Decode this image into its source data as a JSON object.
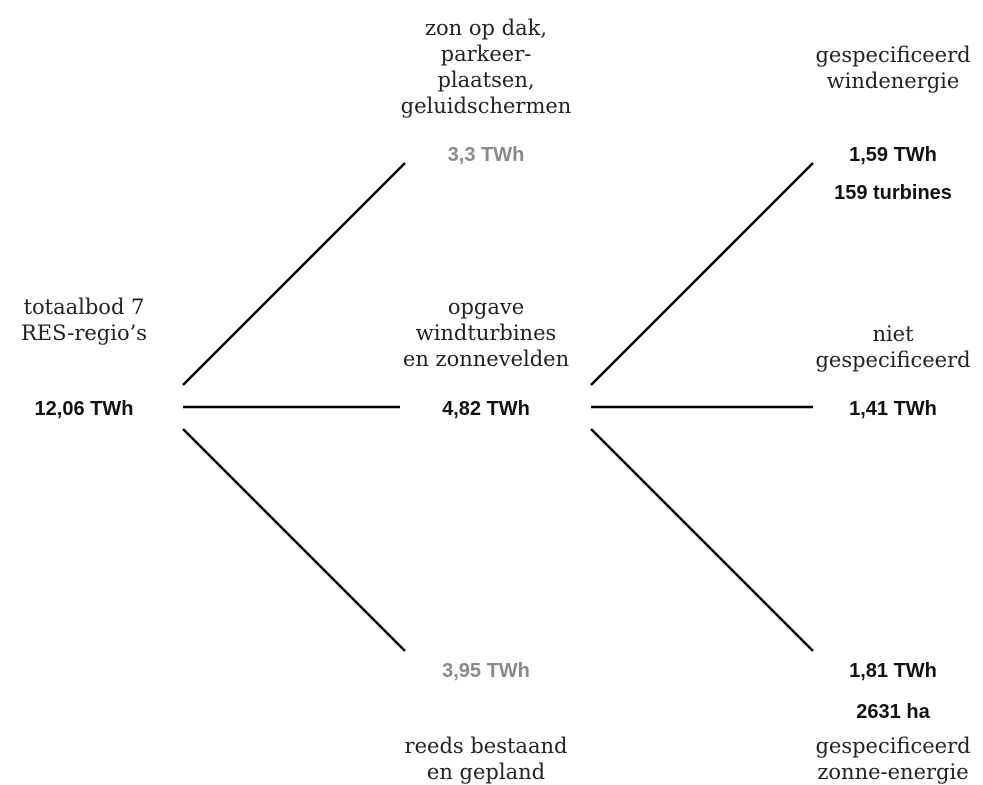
{
  "colors": {
    "dark": "#111111",
    "muted": "#8a8a8a",
    "line": "#000000"
  },
  "root": {
    "label_lines": [
      "totaalbod 7",
      "RES-regio’s"
    ],
    "value": "12,06 TWh"
  },
  "middle": {
    "top": {
      "label_lines": [
        "zon op dak,",
        "parkeer-",
        "plaatsen,",
        "geluidschermen"
      ],
      "value": "3,3 TWh"
    },
    "center": {
      "label_lines": [
        "opgave",
        "windturbines",
        "en zonnevelden"
      ],
      "value": "4,82 TWh"
    },
    "bottom": {
      "label_lines": [
        "reeds bestaand",
        "en gepland"
      ],
      "value": "3,95 TWh"
    }
  },
  "right": {
    "top": {
      "label_lines": [
        "gespecificeerd",
        "windenergie"
      ],
      "value": "1,59 TWh",
      "detail": "159 turbines"
    },
    "center": {
      "label_lines": [
        "niet",
        "gespecificeerd"
      ],
      "value": "1,41 TWh"
    },
    "bottom": {
      "value": "1,81 TWh",
      "detail": "2631 ha",
      "label_lines": [
        "gespecificeerd",
        "zonne-energie"
      ]
    }
  }
}
